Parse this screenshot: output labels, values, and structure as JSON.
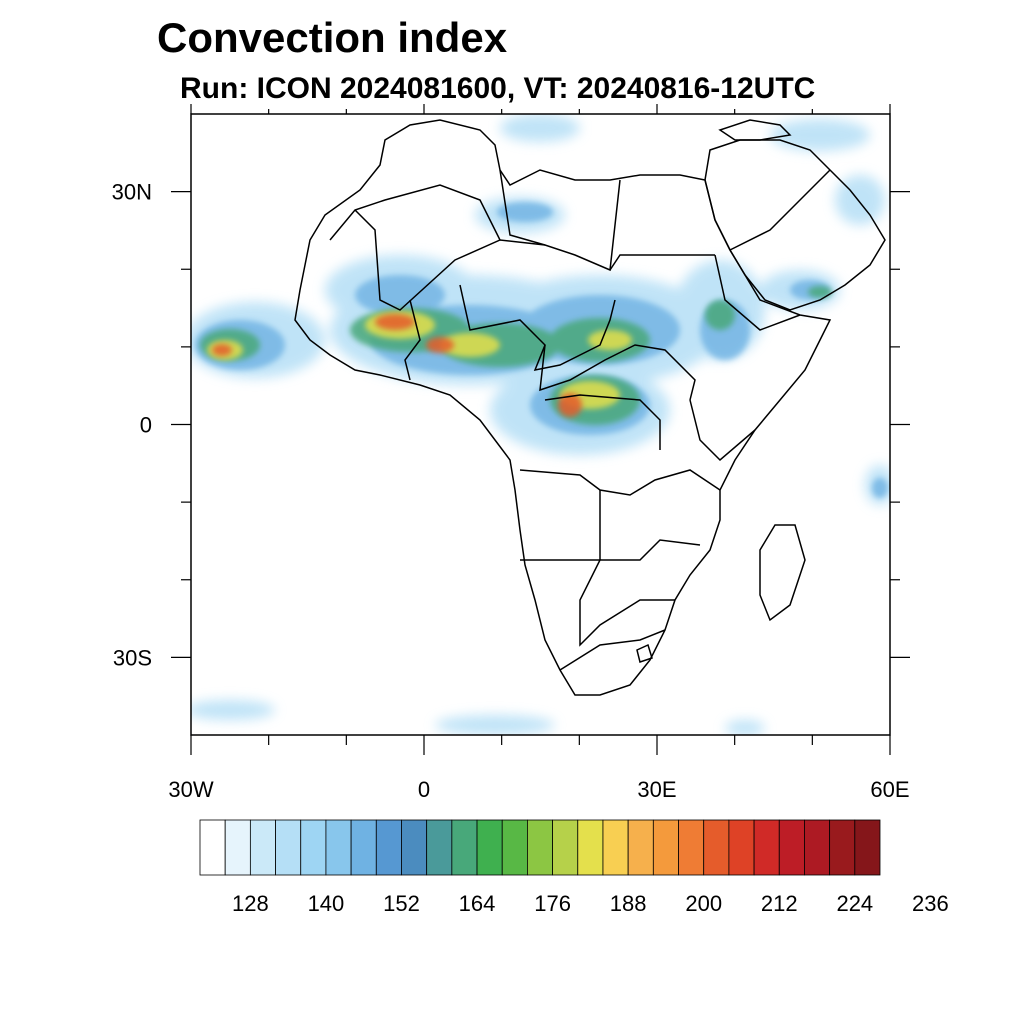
{
  "title": "Convection index",
  "subtitle": "Run: ICON 2024081600,  VT: 20240816-12UTC",
  "map": {
    "lon_range": [
      -30,
      60
    ],
    "lat_range": [
      -40,
      40
    ],
    "lon_ticks": [
      {
        "value": -30,
        "label": "30W"
      },
      {
        "value": 0,
        "label": "0"
      },
      {
        "value": 30,
        "label": "30E"
      },
      {
        "value": 60,
        "label": "60E"
      }
    ],
    "lat_ticks": [
      {
        "value": 30,
        "label": "30N"
      },
      {
        "value": 0,
        "label": "0"
      },
      {
        "value": -30,
        "label": "30S"
      }
    ],
    "minor_lon_ticks": [
      -20,
      -10,
      10,
      20,
      40,
      50
    ],
    "minor_lat_ticks": [
      20,
      10,
      -10,
      -20
    ]
  },
  "colorbar": {
    "colors": [
      "#ffffff",
      "#e6f4fc",
      "#cbe9f8",
      "#b5dff6",
      "#9ed5f3",
      "#88c6ec",
      "#6fb2e3",
      "#5698d2",
      "#4b8cbf",
      "#4a9a9a",
      "#48a87a",
      "#3fb04f",
      "#58b845",
      "#8cc643",
      "#b6d14a",
      "#e4e04c",
      "#f8cf52",
      "#f6b04c",
      "#f49a3c",
      "#ef7c34",
      "#e55c2b",
      "#de4226",
      "#d02a27",
      "#bd1d26",
      "#ad1a23",
      "#991a1d",
      "#85161a"
    ],
    "labels": [
      "128",
      "140",
      "152",
      "164",
      "176",
      "188",
      "200",
      "212",
      "224",
      "236"
    ]
  }
}
